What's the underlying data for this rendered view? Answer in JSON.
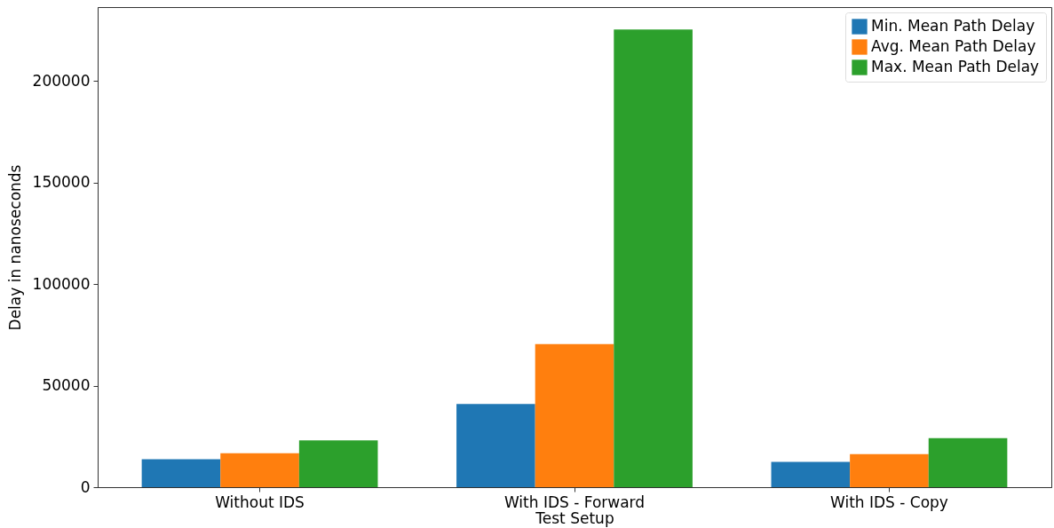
{
  "chart_data": {
    "type": "bar",
    "xlabel": "Test Setup",
    "ylabel": "Delay in nanoseconds",
    "categories": [
      "Without IDS",
      "With IDS - Forward",
      "With IDS - Copy"
    ],
    "series": [
      {
        "name": "Min. Mean Path Delay",
        "color": "#1f77b4",
        "values": [
          13800,
          41000,
          12500
        ]
      },
      {
        "name": "Avg. Mean Path Delay",
        "color": "#ff7f0e",
        "values": [
          16700,
          70500,
          16300
        ]
      },
      {
        "name": "Max. Mean Path Delay",
        "color": "#2ca02c",
        "values": [
          23000,
          225400,
          24100
        ]
      }
    ],
    "ylim": [
      0,
      236400
    ],
    "yticks": [
      0,
      50000,
      100000,
      150000,
      200000
    ],
    "grid": false,
    "legend": "top right"
  }
}
